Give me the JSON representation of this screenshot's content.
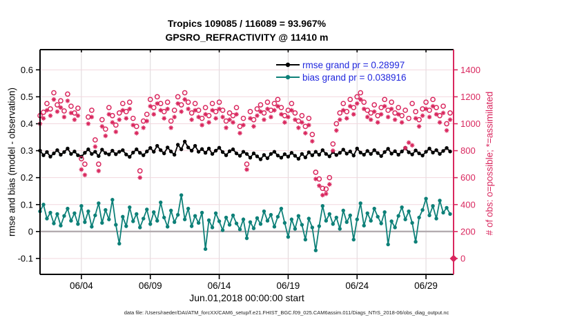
{
  "chart_data": {
    "type": "mixed",
    "title": "Tropics 109085 / 116089 = 93.967%",
    "subtitle": "GPSRO_REFRACTIVITY @ 11410 m",
    "xlabel": "Jun.01,2018 00:00:00 start",
    "ylabel_left": "rmse and bias (model - observation)",
    "ylabel_right": "# of obs: o=possible; *=assimilated",
    "x_start": "2018-06-01 00:00",
    "x_step_days": 0.25,
    "x_range_days": 30,
    "axes": {
      "ylim_left": [
        -0.159,
        0.675
      ],
      "ylim_right": [
        -118,
        1550
      ],
      "right_from_left": "count = (v + 0.1) * 2000",
      "left_ticks": [
        -0.1,
        0,
        0.1,
        0.2,
        0.3,
        0.4,
        0.5,
        0.6
      ],
      "left_tick_labels": [
        "-0.1",
        "0",
        "0.1",
        "0.2",
        "0.3",
        "0.4",
        "0.5",
        "0.6"
      ],
      "right_ticks": [
        0,
        200,
        400,
        600,
        800,
        1000,
        1200,
        1400
      ],
      "right_tick_labels": [
        "0",
        "200",
        "400",
        "600",
        "800",
        "1000",
        "1200",
        "1400"
      ],
      "x_ticks": [
        {
          "day": 3,
          "label": "06/04"
        },
        {
          "day": 8,
          "label": "06/09"
        },
        {
          "day": 13,
          "label": "06/14"
        },
        {
          "day": 18,
          "label": "06/19"
        },
        {
          "day": 23,
          "label": "06/24"
        },
        {
          "day": 28,
          "label": "06/29"
        }
      ],
      "grid": true
    },
    "legend": [
      {
        "label": "rmse grand pr = 0.28997",
        "series": "rmse",
        "color": "#000000"
      },
      {
        "label": "bias grand pr = 0.038916",
        "series": "bias",
        "color": "#0d8078"
      }
    ],
    "legend_text_color": "#2026dd",
    "style": {
      "pink": "#d9275e",
      "teal": "#0d8078",
      "black": "#000000",
      "grid_h": "#f2d7de",
      "grid_v": "#dcd6d9",
      "zero_line": "#b3abaf",
      "background": "#ffffff"
    },
    "series": [
      {
        "name": "rmse",
        "type": "line",
        "axis": "left",
        "marker": "dot",
        "color": "#000000",
        "grand_value": 0.28997,
        "values": [
          0.3,
          0.283,
          0.295,
          0.278,
          0.29,
          0.302,
          0.285,
          0.295,
          0.308,
          0.288,
          0.297,
          0.283,
          0.278,
          0.292,
          0.305,
          0.288,
          0.296,
          0.28,
          0.304,
          0.291,
          0.286,
          0.3,
          0.287,
          0.296,
          0.302,
          0.286,
          0.277,
          0.293,
          0.305,
          0.292,
          0.283,
          0.297,
          0.31,
          0.296,
          0.318,
          0.302,
          0.29,
          0.312,
          0.297,
          0.285,
          0.322,
          0.305,
          0.334,
          0.312,
          0.3,
          0.318,
          0.296,
          0.306,
          0.292,
          0.308,
          0.288,
          0.3,
          0.311,
          0.295,
          0.283,
          0.298,
          0.305,
          0.29,
          0.281,
          0.296,
          0.288,
          0.274,
          0.29,
          0.279,
          0.268,
          0.284,
          0.272,
          0.288,
          0.296,
          0.282,
          0.274,
          0.287,
          0.278,
          0.292,
          0.281,
          0.27,
          0.288,
          0.275,
          0.294,
          0.283,
          0.296,
          0.285,
          0.302,
          0.288,
          0.279,
          0.295,
          0.284,
          0.292,
          0.304,
          0.289,
          0.297,
          0.282,
          0.308,
          0.293,
          0.285,
          0.299,
          0.288,
          0.302,
          0.291,
          0.28,
          0.295,
          0.307,
          0.289,
          0.298,
          0.285,
          0.297,
          0.31,
          0.294,
          0.286,
          0.301,
          0.29,
          0.282,
          0.296,
          0.308,
          0.293,
          0.302,
          0.288,
          0.299,
          0.31,
          0.297
        ]
      },
      {
        "name": "bias",
        "type": "line",
        "axis": "left",
        "marker": "dot",
        "color": "#0d8078",
        "grand_value": 0.038916,
        "values": [
          0.075,
          0.1,
          0.048,
          0.07,
          0.03,
          0.065,
          0.022,
          0.058,
          0.085,
          0.04,
          0.068,
          0.028,
          0.095,
          0.035,
          0.075,
          0.018,
          0.06,
          0.105,
          0.032,
          0.08,
          0.045,
          0.118,
          0.025,
          -0.045,
          0.055,
          0.02,
          0.09,
          0.038,
          0.065,
          0.015,
          0.048,
          0.082,
          0.028,
          0.072,
          0.04,
          0.108,
          0.052,
          0.018,
          0.078,
          0.035,
          0.062,
          0.135,
          0.045,
          0.085,
          0.02,
          0.058,
          0.032,
          0.07,
          -0.065,
          0.042,
          0.015,
          0.068,
          0.038,
          0.005,
          0.052,
          0.025,
          0.06,
          0.03,
          0.008,
          0.045,
          -0.025,
          0.035,
          0.012,
          0.05,
          0.028,
          0.075,
          0.04,
          0.062,
          0.018,
          0.055,
          0.085,
          0.032,
          -0.02,
          0.045,
          0.01,
          0.058,
          0.025,
          -0.03,
          0.048,
          0.015,
          -0.07,
          0.02,
          0.095,
          0.04,
          0.065,
          0.028,
          0.052,
          0.01,
          0.078,
          0.035,
          0.06,
          -0.03,
          0.045,
          0.105,
          0.022,
          0.068,
          0.04,
          0.085,
          0.055,
          0.03,
          0.072,
          -0.048,
          0.038,
          0.015,
          0.058,
          0.09,
          0.045,
          0.075,
          0.032,
          -0.038,
          0.052,
          0.08,
          0.122,
          0.06,
          0.095,
          0.048,
          0.115,
          0.07,
          0.088,
          0.065
        ]
      },
      {
        "name": "possible_obs",
        "type": "scatter",
        "axis": "right",
        "marker": "open-circle",
        "color": "#d9275e",
        "values": [
          1060,
          1085,
          1150,
          1110,
          1230,
          1140,
          1170,
          1095,
          1220,
          1130,
          1080,
          1115,
          740,
          700,
          1050,
          1100,
          880,
          700,
          1030,
          960,
          1120,
          1060,
          990,
          1080,
          1150,
          1090,
          1160,
          1040,
          980,
          650,
          1020,
          1070,
          1180,
          1120,
          1200,
          1150,
          1090,
          1160,
          1020,
          1100,
          1200,
          1140,
          1230,
          1160,
          1080,
          1150,
          1100,
          1040,
          1120,
          1060,
          1150,
          1090,
          1160,
          1100,
          1020,
          1080,
          1060,
          1120,
          980,
          1040,
          700,
          1090,
          1030,
          1110,
          1140,
          1080,
          1160,
          1100,
          1150,
          1180,
          1120,
          1060,
          1100,
          1150,
          1080,
          1020,
          1060,
          980,
          1040,
          920,
          640,
          590,
          520,
          515,
          600,
          850,
          1000,
          1080,
          1150,
          1090,
          1180,
          1120,
          1200,
          1230,
          1160,
          1100,
          1080,
          1140,
          1060,
          1120,
          1180,
          1100,
          1160,
          1080,
          1120,
          1060,
          1100,
          1040,
          1150,
          1090,
          1030,
          1110,
          1160,
          1100,
          1180,
          1120,
          1060,
          1130,
          1000,
          1080
        ]
      },
      {
        "name": "assimilated_obs",
        "type": "scatter",
        "axis": "right",
        "marker": "asterisk",
        "color": "#d9275e",
        "values": [
          1000,
          1040,
          1100,
          1060,
          1180,
          1090,
          1120,
          1050,
          1170,
          1080,
          1030,
          1060,
          660,
          620,
          1000,
          1050,
          830,
          650,
          980,
          910,
          1070,
          1010,
          940,
          1030,
          1100,
          1040,
          1110,
          990,
          930,
          600,
          970,
          1020,
          1130,
          1070,
          1150,
          1100,
          1040,
          1110,
          970,
          1050,
          1150,
          1090,
          1180,
          1110,
          1030,
          1100,
          1050,
          990,
          1070,
          1010,
          1100,
          1040,
          1110,
          1050,
          970,
          1030,
          1010,
          1070,
          930,
          990,
          660,
          1040,
          980,
          1060,
          1090,
          1030,
          1110,
          1050,
          1100,
          1130,
          1070,
          1010,
          1050,
          1100,
          1030,
          970,
          1010,
          930,
          990,
          870,
          590,
          540,
          470,
          480,
          550,
          800,
          950,
          1030,
          1100,
          1040,
          1130,
          1070,
          1150,
          1180,
          1110,
          1050,
          1030,
          1090,
          1010,
          1070,
          1130,
          1050,
          1110,
          1030,
          1070,
          1010,
          820,
          860,
          840,
          1040,
          980,
          1060,
          1110,
          1050,
          1130,
          1070,
          1010,
          1080,
          950,
          1030
        ]
      }
    ],
    "final_marker": {
      "day": 30,
      "count": 0,
      "marker": "diamond",
      "color": "#d9275e"
    }
  },
  "footer": "data file: /Users/raeder/DAI/ATM_forcXX/CAM6_setup/f.e21.FHIST_BGC.f09_025.CAM6assim.011/Diags_NTrS_2018-06/obs_diag_output.nc"
}
